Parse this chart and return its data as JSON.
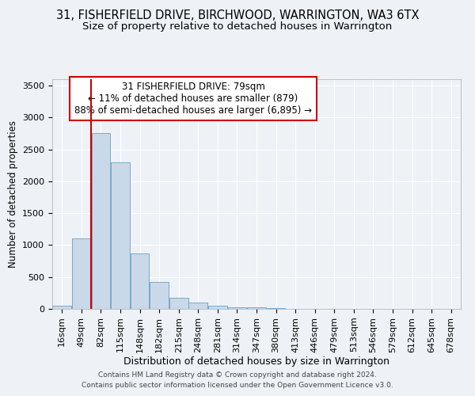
{
  "title_line1": "31, FISHERFIELD DRIVE, BIRCHWOOD, WARRINGTON, WA3 6TX",
  "title_line2": "Size of property relative to detached houses in Warrington",
  "xlabel": "Distribution of detached houses by size in Warrington",
  "ylabel": "Number of detached properties",
  "footer_line1": "Contains HM Land Registry data © Crown copyright and database right 2024.",
  "footer_line2": "Contains public sector information licensed under the Open Government Licence v3.0.",
  "bin_labels": [
    "16sqm",
    "49sqm",
    "82sqm",
    "115sqm",
    "148sqm",
    "182sqm",
    "215sqm",
    "248sqm",
    "281sqm",
    "314sqm",
    "347sqm",
    "380sqm",
    "413sqm",
    "446sqm",
    "479sqm",
    "513sqm",
    "546sqm",
    "579sqm",
    "612sqm",
    "645sqm",
    "678sqm"
  ],
  "bar_values": [
    50,
    1100,
    2750,
    2300,
    875,
    425,
    175,
    100,
    50,
    30,
    20,
    10,
    5,
    0,
    0,
    0,
    0,
    0,
    0,
    0,
    0
  ],
  "bar_color": "#c9d9ea",
  "bar_edgecolor": "#6a9ec5",
  "annotation_line1": "31 FISHERFIELD DRIVE: 79sqm",
  "annotation_line2": "← 11% of detached houses are smaller (879)",
  "annotation_line3": "88% of semi-detached houses are larger (6,895) →",
  "vline_color": "#cc0000",
  "vline_x": 1.5,
  "ylim": [
    0,
    3600
  ],
  "yticks": [
    0,
    500,
    1000,
    1500,
    2000,
    2500,
    3000,
    3500
  ],
  "annotation_box_facecolor": "#ffffff",
  "annotation_box_edgecolor": "#cc0000",
  "background_color": "#eef2f7",
  "grid_color": "#ffffff",
  "title1_fontsize": 10.5,
  "title2_fontsize": 9.5,
  "xlabel_fontsize": 9,
  "ylabel_fontsize": 8.5,
  "tick_fontsize": 8,
  "ann_fontsize": 8.5
}
